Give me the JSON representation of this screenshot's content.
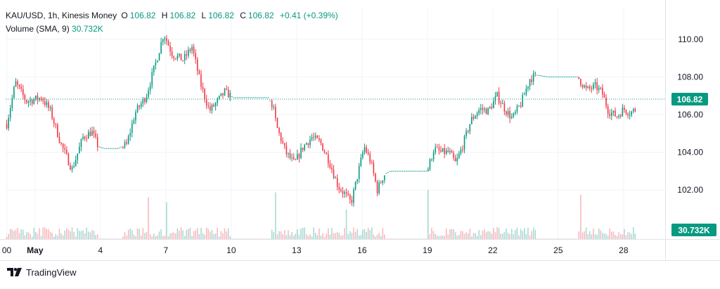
{
  "header": {
    "symbol": "KAU/USD, 1h, Kinesis Money",
    "open_label": "O",
    "open": "106.82",
    "high_label": "H",
    "high": "106.82",
    "low_label": "L",
    "low": "106.82",
    "close_label": "C",
    "close": "106.82",
    "change": "+0.41 (+0.39%)"
  },
  "volume_indicator": {
    "label": "Volume (SMA, 9)",
    "value": "30.732K"
  },
  "price_tag": "106.82",
  "volume_tag": "30.732K",
  "branding": "TradingView",
  "colors": {
    "up": "#089981",
    "down": "#f23645",
    "price_line": "#089981"
  },
  "chart_data": {
    "type": "candlestick",
    "instrument": "KAU/USD",
    "interval": "1h",
    "y_axis": {
      "ticks": [
        "102.00",
        "104.00",
        "106.00",
        "108.00",
        "110.00"
      ],
      "range": [
        100.3,
        111.0
      ],
      "side": "right"
    },
    "x_axis": {
      "ticks": [
        {
          "label": "00",
          "day": -0.3
        },
        {
          "label": "May",
          "day": 1
        },
        {
          "label": "4",
          "day": 4
        },
        {
          "label": "7",
          "day": 7
        },
        {
          "label": "10",
          "day": 10
        },
        {
          "label": "13",
          "day": 13
        },
        {
          "label": "16",
          "day": 16
        },
        {
          "label": "19",
          "day": 19
        },
        {
          "label": "22",
          "day": 22
        },
        {
          "label": "25",
          "day": 25
        },
        {
          "label": "28",
          "day": 28
        }
      ]
    },
    "last_price": 106.82,
    "price_path": [
      [
        -0.3,
        105.5
      ],
      [
        0.1,
        107.7
      ],
      [
        0.6,
        106.7
      ],
      [
        1.3,
        106.9
      ],
      [
        1.7,
        106.2
      ],
      [
        2.2,
        104.4
      ],
      [
        2.7,
        103.1
      ],
      [
        3.2,
        104.8
      ],
      [
        3.6,
        105.1
      ],
      [
        3.9,
        104.3
      ],
      [
        4.2,
        104.2
      ],
      [
        4.8,
        104.2
      ],
      [
        5.2,
        104.4
      ],
      [
        5.6,
        106.1
      ],
      [
        6.1,
        107.0
      ],
      [
        6.6,
        109.0
      ],
      [
        6.9,
        110.3
      ],
      [
        7.3,
        109.2
      ],
      [
        7.8,
        108.9
      ],
      [
        8.2,
        109.6
      ],
      [
        8.6,
        107.6
      ],
      [
        9.0,
        106.2
      ],
      [
        9.3,
        106.6
      ],
      [
        9.7,
        107.2
      ],
      [
        10.1,
        106.9
      ],
      [
        10.9,
        106.9
      ],
      [
        11.7,
        106.9
      ],
      [
        11.9,
        106.5
      ],
      [
        12.1,
        105.3
      ],
      [
        12.5,
        104.0
      ],
      [
        12.9,
        103.4
      ],
      [
        13.3,
        104.3
      ],
      [
        13.7,
        104.8
      ],
      [
        14.1,
        104.5
      ],
      [
        14.5,
        103.5
      ],
      [
        14.9,
        102.2
      ],
      [
        15.2,
        101.8
      ],
      [
        15.5,
        101.3
      ],
      [
        15.8,
        102.8
      ],
      [
        16.1,
        104.3
      ],
      [
        16.4,
        103.5
      ],
      [
        16.7,
        102.0
      ],
      [
        17.0,
        102.8
      ],
      [
        17.3,
        103.0
      ],
      [
        18.4,
        103.0
      ],
      [
        19.0,
        103.0
      ],
      [
        19.3,
        104.2
      ],
      [
        19.6,
        104.0
      ],
      [
        20.0,
        104.0
      ],
      [
        20.3,
        103.4
      ],
      [
        20.6,
        104.3
      ],
      [
        21.0,
        105.7
      ],
      [
        21.4,
        106.3
      ],
      [
        21.8,
        106.2
      ],
      [
        22.2,
        107.0
      ],
      [
        22.6,
        106.2
      ],
      [
        22.9,
        105.8
      ],
      [
        23.3,
        106.6
      ],
      [
        23.7,
        107.9
      ],
      [
        24.0,
        108.1
      ],
      [
        24.5,
        108.0
      ],
      [
        25.4,
        108.0
      ],
      [
        25.9,
        108.0
      ],
      [
        26.3,
        107.3
      ],
      [
        26.7,
        107.5
      ],
      [
        27.0,
        107.2
      ],
      [
        27.3,
        106.2
      ],
      [
        27.7,
        105.9
      ],
      [
        28.0,
        106.3
      ],
      [
        28.3,
        106.1
      ],
      [
        28.6,
        106.3
      ]
    ],
    "volume_spikes": [
      {
        "day": 6.2,
        "rel": 0.85
      },
      {
        "day": 7.0,
        "rel": 0.75
      },
      {
        "day": 12.0,
        "rel": 0.95
      },
      {
        "day": 19.0,
        "rel": 1.0
      },
      {
        "day": 26.0,
        "rel": 0.9
      },
      {
        "day": 15.3,
        "rel": 0.6
      }
    ],
    "grid": true,
    "legend": "top-left"
  }
}
